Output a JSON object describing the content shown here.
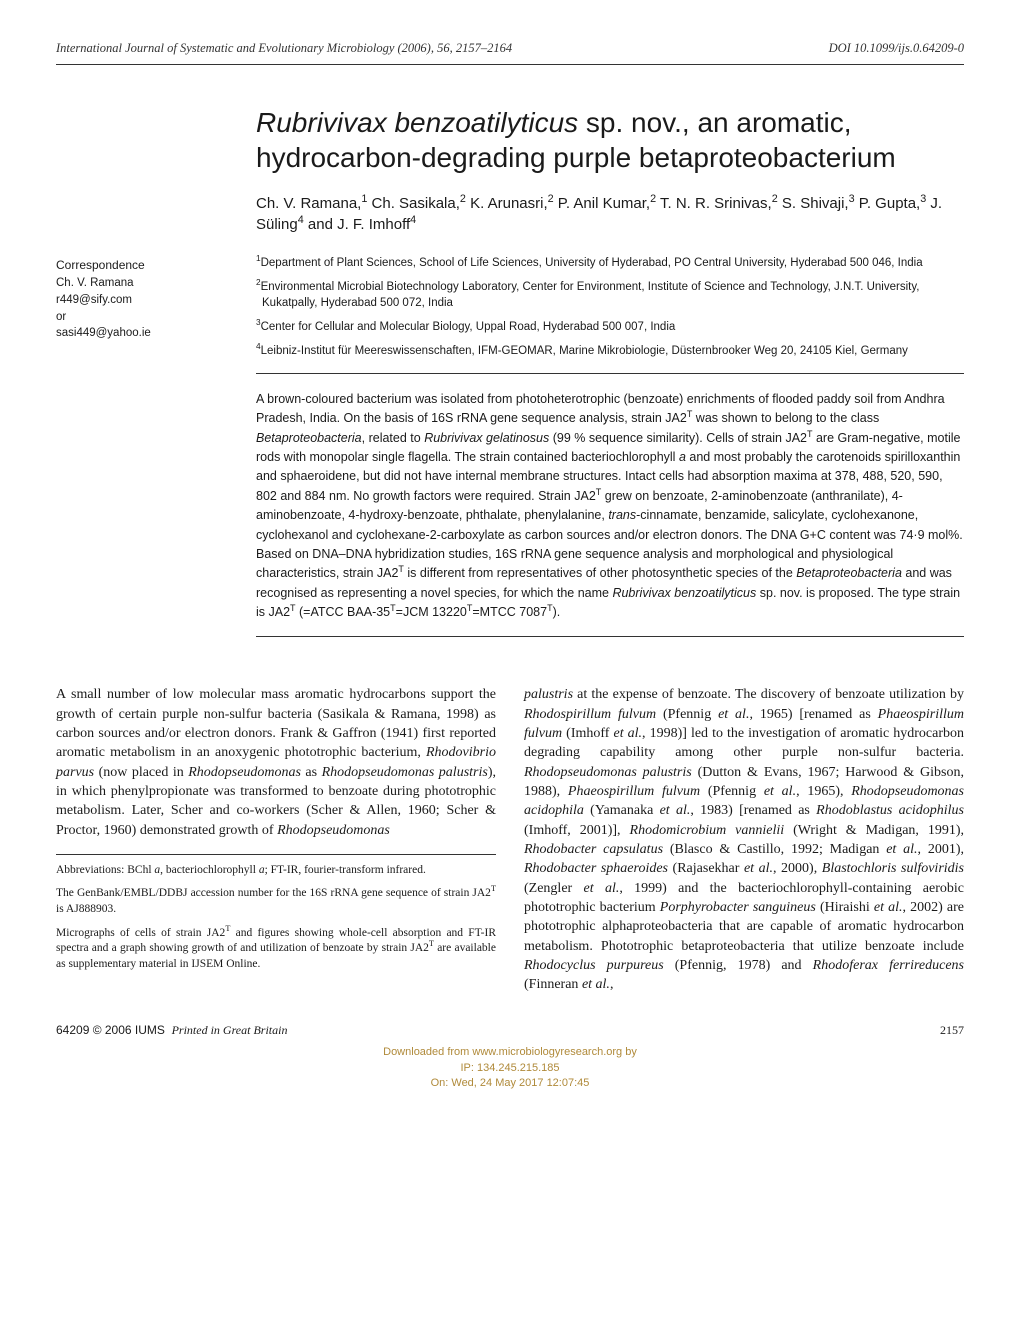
{
  "header": {
    "journal": "International Journal of Systematic and Evolutionary Microbiology (2006), 56, 2157–2164",
    "doi": "DOI 10.1099/ijs.0.64209-0"
  },
  "title_html": "<span class=\"ital\">Rubrivivax benzoatilyticus</span> sp. nov., an aromatic, hydrocarbon-degrading purple betaproteobacterium",
  "authors_html": "Ch. V. Ramana,<sup>1</sup> Ch. Sasikala,<sup>2</sup> K. Arunasri,<sup>2</sup> P. Anil Kumar,<sup>2</sup> T. N. R. Srinivas,<sup>2</sup> S. Shivaji,<sup>3</sup> P. Gupta,<sup>3</sup> J. Süling<sup>4</sup> and J. F. Imhoff<sup>4</sup>",
  "correspondence": {
    "heading": "Correspondence",
    "name": "Ch. V. Ramana",
    "email1": "r449@sify.com",
    "or": "or",
    "email2": "sasi449@yahoo.ie"
  },
  "affiliations": [
    "<sup>1</sup>Department of Plant Sciences, School of Life Sciences, University of Hyderabad, PO Central University, Hyderabad 500 046, India",
    "<sup>2</sup>Environmental Microbial Biotechnology Laboratory, Center for Environment, Institute of Science and Technology, J.N.T. University, Kukatpally, Hyderabad 500 072, India",
    "<sup>3</sup>Center for Cellular and Molecular Biology, Uppal Road, Hyderabad 500 007, India",
    "<sup>4</sup>Leibniz-Institut für Meereswissenschaften, IFM-GEOMAR, Marine Mikrobiologie, Düsternbrooker Weg 20, 24105 Kiel, Germany"
  ],
  "abstract_html": "A brown-coloured bacterium was isolated from photoheterotrophic (benzoate) enrichments of flooded paddy soil from Andhra Pradesh, India. On the basis of 16S rRNA gene sequence analysis, strain JA2<sup>T</sup> was shown to belong to the class <span class=\"ital\">Betaproteobacteria</span>, related to <span class=\"ital\">Rubrivivax gelatinosus</span> (99 % sequence similarity). Cells of strain JA2<sup>T</sup> are Gram-negative, motile rods with monopolar single flagella. The strain contained bacteriochlorophyll <span class=\"ital\">a</span> and most probably the carotenoids spirilloxanthin and sphaeroidene, but did not have internal membrane structures. Intact cells had absorption maxima at 378, 488, 520, 590, 802 and 884 nm. No growth factors were required. Strain JA2<sup>T</sup> grew on benzoate, 2-aminobenzoate (anthranilate), 4-aminobenzoate, 4-hydroxy-benzoate, phthalate, phenylalanine, <span class=\"ital\">trans</span>-cinnamate, benzamide, salicylate, cyclohexanone, cyclohexanol and cyclohexane-2-carboxylate as carbon sources and/or electron donors. The DNA G+C content was 74·9 mol%. Based on DNA–DNA hybridization studies, 16S rRNA gene sequence analysis and morphological and physiological characteristics, strain JA2<sup>T</sup> is different from representatives of other photosynthetic species of the <span class=\"ital\">Betaproteobacteria</span> and was recognised as representing a novel species, for which the name <span class=\"ital\">Rubrivivax benzoatilyticus</span> sp. nov. is proposed. The type strain is JA2<sup>T</sup> (=ATCC BAA-35<sup>T</sup>=JCM 13220<sup>T</sup>=MTCC 7087<sup>T</sup>).",
  "body": {
    "col1_html": "A small number of low molecular mass aromatic hydrocarbons support the growth of certain purple non-sulfur bacteria (Sasikala & Ramana, 1998) as carbon sources and/or electron donors. Frank & Gaffron (1941) first reported aromatic metabolism in an anoxygenic phototrophic bacterium, <span class=\"ital\">Rhodovibrio parvus</span> (now placed in <span class=\"ital\">Rhodopseudomonas</span> as <span class=\"ital\">Rhodopseudomonas palustris</span>), in which phenylpropionate was transformed to benzoate during phototrophic metabolism. Later, Scher and co-workers (Scher & Allen, 1960; Scher & Proctor, 1960) demonstrated growth of <span class=\"ital\">Rhodopseudomonas</span>",
    "col2_html": "<span class=\"ital\">palustris</span> at the expense of benzoate. The discovery of benzoate utilization by <span class=\"ital\">Rhodospirillum fulvum</span> (Pfennig <span class=\"ital\">et al.</span>, 1965) [renamed as <span class=\"ital\">Phaeospirillum fulvum</span> (Imhoff <span class=\"ital\">et al.</span>, 1998)] led to the investigation of aromatic hydrocarbon degrading capability among other purple non-sulfur bacteria. <span class=\"ital\">Rhodopseudomonas palustris</span> (Dutton & Evans, 1967; Harwood & Gibson, 1988), <span class=\"ital\">Phaeospirillum fulvum</span> (Pfennig <span class=\"ital\">et al.</span>, 1965), <span class=\"ital\">Rhodopseudomonas acidophila</span> (Yamanaka <span class=\"ital\">et al.</span>, 1983) [renamed as <span class=\"ital\">Rhodoblastus acidophilus</span> (Imhoff, 2001)], <span class=\"ital\">Rhodomicrobium vannielii</span> (Wright & Madigan, 1991), <span class=\"ital\">Rhodobacter capsulatus</span> (Blasco & Castillo, 1992; Madigan <span class=\"ital\">et al.</span>, 2001), <span class=\"ital\">Rhodobacter sphaeroides</span> (Rajasekhar <span class=\"ital\">et al.</span>, 2000), <span class=\"ital\">Blastochloris sulfoviridis</span> (Zengler <span class=\"ital\">et al.</span>, 1999) and the bacteriochlorophyll-containing aerobic phototrophic bacterium <span class=\"ital\">Porphyrobacter sanguineus</span> (Hiraishi <span class=\"ital\">et al.</span>, 2002) are phototrophic alphaproteobacteria that are capable of aromatic hydrocarbon metabolism. Phototrophic betaproteobacteria that utilize benzoate include <span class=\"ital\">Rhodocyclus purpureus</span> (Pfennig, 1978) and <span class=\"ital\">Rhodoferax ferrireducens</span> (Finneran <span class=\"ital\">et al.</span>,"
  },
  "footnotes": [
    "Abbreviations: BChl <span class=\"ital\">a</span>, bacteriochlorophyll <span class=\"ital\">a</span>; FT-IR, fourier-transform infrared.",
    "The GenBank/EMBL/DDBJ accession number for the 16S rRNA gene sequence of strain JA2<sup>T</sup> is AJ888903.",
    "Micrographs of cells of strain JA2<sup>T</sup> and figures showing whole-cell absorption and FT-IR spectra and a graph showing growth of and utilization of benzoate by strain JA2<sup>T</sup> are available as supplementary material in IJSEM Online."
  ],
  "footer": {
    "left_html": "64209 © 2006 IUMS &nbsp;<span class=\"pgi\">Printed in Great Britain</span>",
    "page": "2157"
  },
  "watermark": {
    "l1": "Downloaded from www.microbiologyresearch.org by",
    "l2": "IP: 134.245.215.185",
    "l3": "On: Wed, 24 May 2017 12:07:45"
  }
}
